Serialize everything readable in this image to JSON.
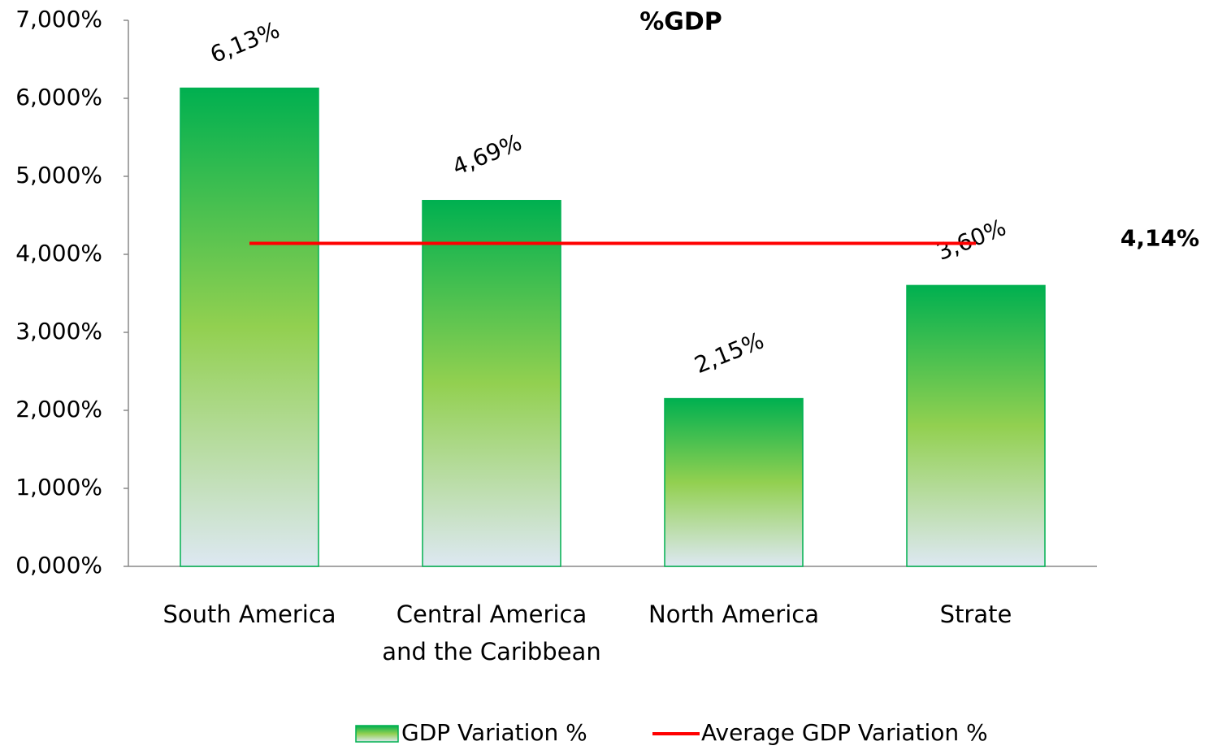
{
  "chart_data": {
    "type": "bar",
    "title": "%GDP",
    "categories": [
      "South America",
      "Central America and the Caribbean",
      "North America",
      "Strate"
    ],
    "series": [
      {
        "name": "GDP Variation  %",
        "type": "bar",
        "color": "#00b050",
        "values": [
          6.13,
          4.69,
          2.15,
          3.6
        ],
        "value_labels": [
          "6,13%",
          "4,69%",
          "2,15%",
          "3,60%"
        ]
      },
      {
        "name": "Average GDP Variation  %",
        "type": "line",
        "color": "#ff0000",
        "values": [
          4.14,
          4.14,
          4.14,
          4.14
        ],
        "value_labels": [
          null,
          null,
          null,
          "4,14%"
        ]
      }
    ],
    "ylim": [
      0,
      7
    ],
    "yticks": [
      {
        "value": 0,
        "label": "0,000%"
      },
      {
        "value": 1,
        "label": "1,000%"
      },
      {
        "value": 2,
        "label": "2,000%"
      },
      {
        "value": 3,
        "label": "3,000%"
      },
      {
        "value": 4,
        "label": "4,000%"
      },
      {
        "value": 5,
        "label": "5,000%"
      },
      {
        "value": 6,
        "label": "6,000%"
      },
      {
        "value": 7,
        "label": "7,000%"
      }
    ],
    "legend": "bottom",
    "grid": false
  }
}
